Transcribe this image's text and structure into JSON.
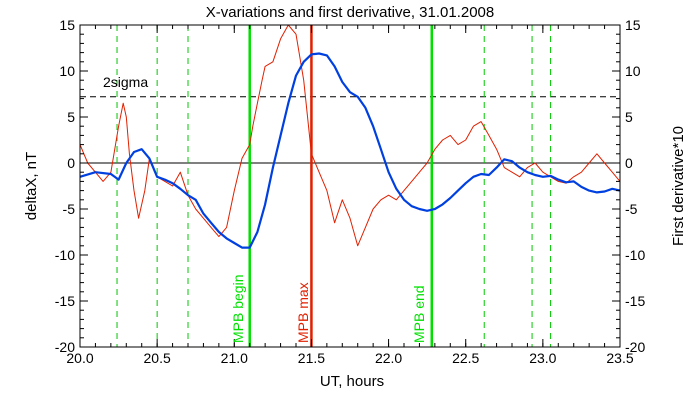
{
  "chart_data": {
    "type": "line",
    "title": "X-variations and first derivative, 31.01.2008",
    "xlabel": "UT, hours",
    "ylabel_left": "deltaX, nT",
    "ylabel_right": "First derivative*10",
    "xlim": [
      20.0,
      23.5
    ],
    "ylim": [
      -20,
      15
    ],
    "x_ticks": [
      "20.0",
      "20.5",
      "21.0",
      "21.5",
      "22.0",
      "22.5",
      "23.0",
      "23.5"
    ],
    "y_ticks": [
      "15",
      "10",
      "5",
      "0",
      "-5",
      "-10",
      "-15",
      "-20"
    ],
    "colors": {
      "deltaX": "#0040e0",
      "derivative": "#e02000",
      "mpb_begin_end": "#00e000",
      "mpb_max": "#e02000",
      "dashed_markers": "#00c800",
      "axes": "#000000"
    },
    "annotations": {
      "two_sigma_label": "2sigma",
      "two_sigma_level": 7.2,
      "mpb_begin_label": "MPB begin",
      "mpb_max_label": "MPB max",
      "mpb_end_label": "MPB end"
    },
    "vertical_markers": {
      "mpb_begin": 21.1,
      "mpb_max": 21.5,
      "mpb_end": 22.28,
      "dashed": [
        20.24,
        20.5,
        20.7,
        22.62,
        22.93,
        23.05
      ]
    },
    "series": [
      {
        "name": "deltaX, nT",
        "x": [
          20.0,
          20.1,
          20.2,
          20.25,
          20.3,
          20.35,
          20.4,
          20.45,
          20.5,
          20.55,
          20.6,
          20.65,
          20.7,
          20.75,
          20.8,
          20.85,
          20.9,
          20.95,
          21.0,
          21.05,
          21.1,
          21.15,
          21.2,
          21.25,
          21.3,
          21.35,
          21.4,
          21.45,
          21.5,
          21.55,
          21.6,
          21.65,
          21.7,
          21.75,
          21.8,
          21.85,
          21.9,
          21.95,
          22.0,
          22.05,
          22.1,
          22.15,
          22.2,
          22.25,
          22.3,
          22.35,
          22.4,
          22.45,
          22.5,
          22.55,
          22.6,
          22.65,
          22.7,
          22.75,
          22.8,
          22.85,
          22.9,
          22.95,
          23.0,
          23.05,
          23.1,
          23.15,
          23.2,
          23.25,
          23.3,
          23.35,
          23.4,
          23.45,
          23.5
        ],
        "values": [
          -1.5,
          -1.0,
          -1.2,
          -1.8,
          0,
          1.2,
          1.5,
          0.5,
          -1.5,
          -1.8,
          -2.2,
          -2.8,
          -3.5,
          -4.0,
          -5.5,
          -6.5,
          -7.5,
          -8.2,
          -8.7,
          -9.2,
          -9.2,
          -7.5,
          -4.5,
          -0.5,
          3.0,
          6.5,
          9.5,
          11.0,
          11.8,
          11.9,
          11.7,
          10.5,
          8.8,
          7.7,
          7.2,
          6.0,
          4.0,
          1.5,
          -1.0,
          -2.8,
          -4.0,
          -4.7,
          -5.0,
          -5.2,
          -5.0,
          -4.5,
          -3.8,
          -3.0,
          -2.2,
          -1.5,
          -1.2,
          -1.3,
          -0.5,
          0.4,
          0.2,
          -0.5,
          -1.0,
          -1.3,
          -1.5,
          -1.4,
          -1.8,
          -2.1,
          -2.0,
          -2.6,
          -3.0,
          -3.2,
          -3.1,
          -2.8,
          -3.0
        ]
      },
      {
        "name": "First derivative*10",
        "x": [
          20.0,
          20.05,
          20.1,
          20.15,
          20.2,
          20.25,
          20.28,
          20.3,
          20.32,
          20.35,
          20.38,
          20.42,
          20.45,
          20.5,
          20.55,
          20.6,
          20.65,
          20.7,
          20.75,
          20.8,
          20.85,
          20.9,
          20.95,
          21.0,
          21.05,
          21.1,
          21.12,
          21.15,
          21.18,
          21.2,
          21.25,
          21.3,
          21.35,
          21.4,
          21.45,
          21.5,
          21.55,
          21.6,
          21.65,
          21.7,
          21.75,
          21.8,
          21.85,
          21.9,
          21.95,
          22.0,
          22.05,
          22.1,
          22.15,
          22.2,
          22.25,
          22.3,
          22.35,
          22.4,
          22.45,
          22.5,
          22.55,
          22.6,
          22.65,
          22.7,
          22.75,
          22.8,
          22.85,
          22.9,
          22.95,
          23.0,
          23.05,
          23.1,
          23.15,
          23.2,
          23.25,
          23.3,
          23.35,
          23.4,
          23.45,
          23.5
        ],
        "values": [
          2,
          0,
          -1,
          -2,
          -1,
          4,
          6.5,
          5,
          1,
          -3,
          -6,
          -3,
          0.5,
          -1.5,
          -2,
          -2.5,
          -1,
          -3.5,
          -5,
          -6,
          -7,
          -8,
          -7,
          -3,
          0.5,
          2,
          4,
          6.5,
          9,
          10.5,
          11,
          13.5,
          15,
          14,
          9,
          1,
          -1,
          -3,
          -6.5,
          -4,
          -6,
          -9,
          -7,
          -5,
          -4,
          -3.5,
          -4,
          -3,
          -2,
          -1,
          0,
          1.5,
          2.5,
          3,
          2,
          2.5,
          4,
          4.5,
          3,
          1.5,
          -0.5,
          -1,
          -1.5,
          -0.5,
          0,
          -1,
          -1.5,
          -2,
          -2.2,
          -1.5,
          -1,
          0,
          1,
          0,
          -1,
          -2
        ]
      }
    ]
  }
}
